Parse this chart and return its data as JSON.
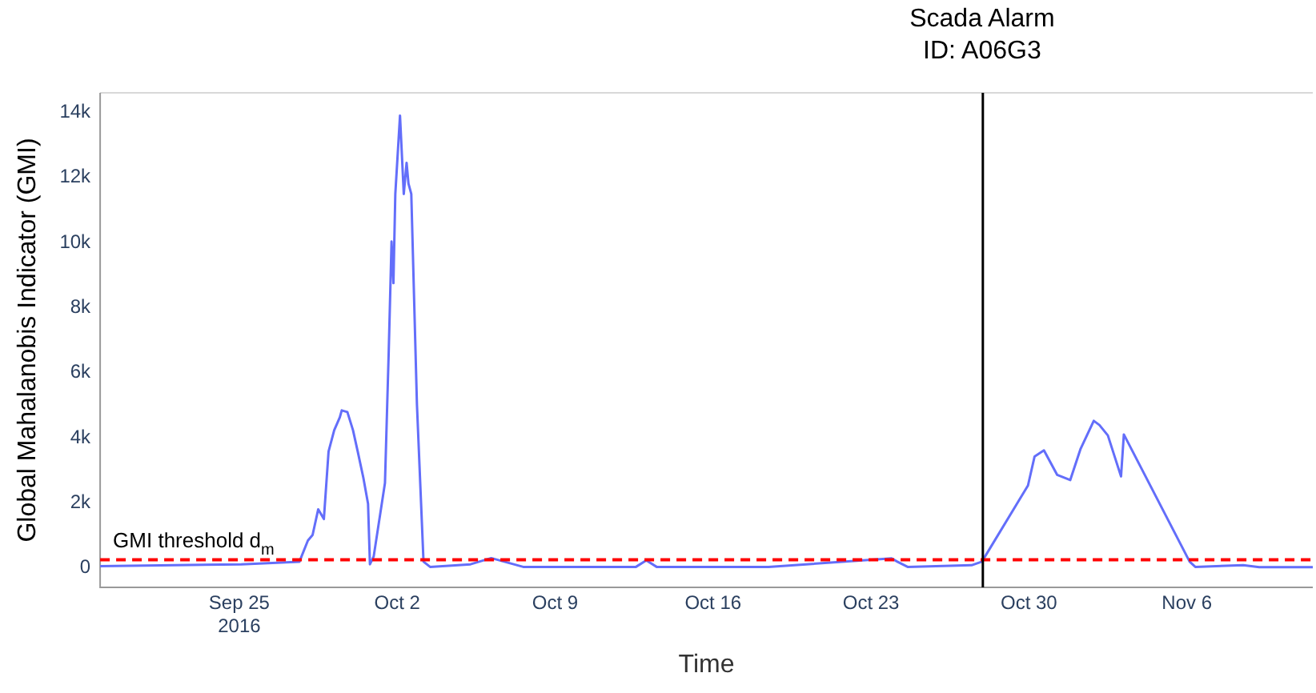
{
  "chart_data": {
    "type": "line",
    "xlabel": "Time",
    "ylabel": "Global Mahalanobis Indicator (GMI)",
    "xlim": [
      "2016-09-18T20:00",
      "2016-11-11T14:00"
    ],
    "xticks": [
      {
        "value": "2016-09-25",
        "label": "Sep 25\n2016"
      },
      {
        "value": "2016-10-02",
        "label": "Oct 2"
      },
      {
        "value": "2016-10-09",
        "label": "Oct 9"
      },
      {
        "value": "2016-10-16",
        "label": "Oct 16"
      },
      {
        "value": "2016-10-23",
        "label": "Oct 23"
      },
      {
        "value": "2016-10-30",
        "label": "Oct 30"
      },
      {
        "value": "2016-11-06",
        "label": "Nov 6"
      }
    ],
    "ylim": [
      -600,
      14600
    ],
    "yticks": [
      0,
      {
        "value": 2000,
        "label": "2k"
      },
      {
        "value": 4000,
        "label": "4k"
      },
      {
        "value": 6000,
        "label": "6k"
      },
      {
        "value": 8000,
        "label": "8k"
      },
      {
        "value": 10000,
        "label": "10k"
      },
      {
        "value": 12000,
        "label": "12k"
      },
      {
        "value": 14000,
        "label": "14k"
      }
    ],
    "grid": false,
    "legend": false,
    "marker": "none",
    "line_style": "solid",
    "series": [
      {
        "color": "#636efa",
        "x": [
          "2016-09-18T20:00",
          "2016-09-25T02:00",
          "2016-09-27T16:00",
          "2016-09-28T01:00",
          "2016-09-28T06:00",
          "2016-09-28T12:00",
          "2016-09-28T18:00",
          "2016-09-28T23:00",
          "2016-09-29T05:00",
          "2016-09-29T11:00",
          "2016-09-29T13:00",
          "2016-09-29T19:00",
          "2016-09-30T01:00",
          "2016-09-30T06:00",
          "2016-09-30T12:00",
          "2016-09-30T17:00",
          "2016-09-30T19:00",
          "2016-09-30T23:00",
          "2016-10-01T11:00",
          "2016-10-01T15:00",
          "2016-10-01T18:00",
          "2016-10-01T20:00",
          "2016-10-01T22:00",
          "2016-10-02T03:00",
          "2016-10-02T07:00",
          "2016-10-02T10:00",
          "2016-10-02T12:00",
          "2016-10-02T15:00",
          "2016-10-02T21:00",
          "2016-10-03T04:00",
          "2016-10-03T11:00",
          "2016-10-05T06:00",
          "2016-10-06T04:00",
          "2016-10-07T14:00",
          "2016-10-12T14:00",
          "2016-10-13T01:00",
          "2016-10-13T12:00",
          "2016-10-18T11:00",
          "2016-10-23T22:00",
          "2016-10-24T04:00",
          "2016-10-24T15:00",
          "2016-10-27T11:00",
          "2016-10-27T22:00",
          "2016-10-29T23:00",
          "2016-10-30T06:00",
          "2016-10-30T16:00",
          "2016-10-31T06:00",
          "2016-10-31T20:00",
          "2016-11-01T07:00",
          "2016-11-01T21:00",
          "2016-11-02T03:00",
          "2016-11-02T12:00",
          "2016-11-03T02:00",
          "2016-11-03T05:00",
          "2016-11-06T03:00",
          "2016-11-06T09:00",
          "2016-11-08T12:00",
          "2016-11-09T05:00",
          "2016-11-11T14:00"
        ],
        "values": [
          50,
          110,
          190,
          840,
          1010,
          1800,
          1500,
          3580,
          4230,
          4630,
          4840,
          4790,
          4230,
          3580,
          2770,
          1970,
          110,
          350,
          2610,
          6650,
          10030,
          8750,
          11490,
          13900,
          11490,
          12450,
          11810,
          11490,
          5030,
          190,
          30,
          110,
          300,
          30,
          30,
          230,
          30,
          30,
          290,
          190,
          30,
          80,
          190,
          2530,
          3420,
          3610,
          2860,
          2700,
          3660,
          4520,
          4390,
          4070,
          2810,
          4100,
          190,
          30,
          80,
          20,
          20
        ]
      }
    ],
    "ref_lines": [
      {
        "axis": "y",
        "value": 250,
        "label": "GMI threshold d$_{m}$",
        "color": "#ff0000",
        "line_style": "dashed"
      },
      {
        "axis": "x",
        "value": "2016-10-27T23:00",
        "label": "Scada Alarm\nID: A06G3",
        "color": "#000000",
        "line_style": "solid"
      }
    ]
  }
}
